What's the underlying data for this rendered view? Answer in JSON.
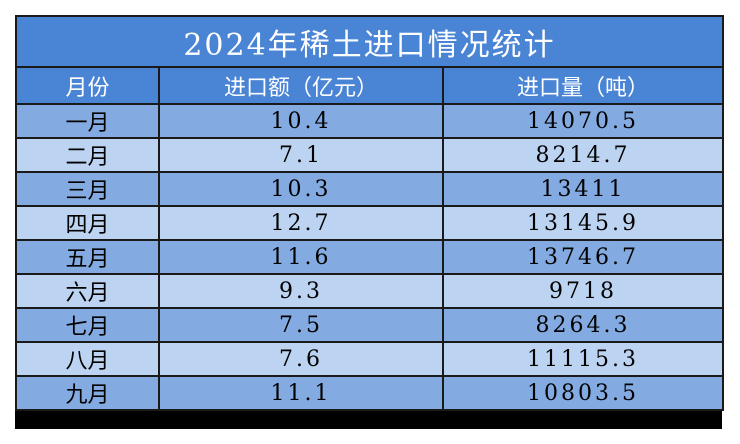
{
  "table": {
    "title": "2024年稀土进口情况统计",
    "headers": [
      "月份",
      "进口额（亿元）",
      "进口量（吨）"
    ],
    "rows": [
      {
        "month": "一月",
        "amount": "10.4",
        "volume": "14070.5"
      },
      {
        "month": "二月",
        "amount": "7.1",
        "volume": "8214.7"
      },
      {
        "month": "三月",
        "amount": "10.3",
        "volume": "13411"
      },
      {
        "month": "四月",
        "amount": "12.7",
        "volume": "13145.9"
      },
      {
        "month": "五月",
        "amount": "11.6",
        "volume": "13746.7"
      },
      {
        "month": "六月",
        "amount": "9.3",
        "volume": "9718"
      },
      {
        "month": "七月",
        "amount": "7.5",
        "volume": "8264.3"
      },
      {
        "month": "八月",
        "amount": "7.6",
        "volume": "11115.3"
      },
      {
        "month": "九月",
        "amount": "11.1",
        "volume": "10803.5"
      }
    ]
  },
  "colors": {
    "header_bg": "#4a84d4",
    "row_dark": "#83abe1",
    "row_light": "#bcd3f1",
    "header_text": "#ffffff",
    "border": "#1a1a1a"
  }
}
